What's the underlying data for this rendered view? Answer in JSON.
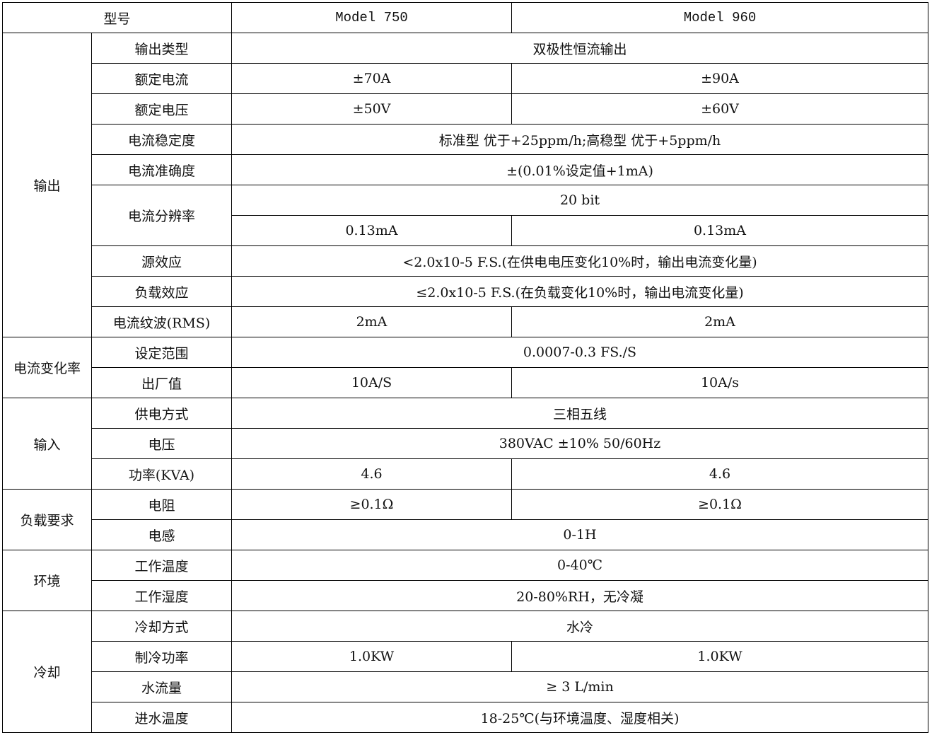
{
  "header": {
    "label": "型号",
    "models": [
      "Model 750",
      "Model 960"
    ]
  },
  "groups": [
    {
      "name": "输出",
      "rows": [
        {
          "label": "输出类型",
          "values": [
            "双极性恒流输出"
          ]
        },
        {
          "label": "额定电流",
          "values": [
            "±70A",
            "±90A"
          ]
        },
        {
          "label": "额定电压",
          "values": [
            "±50V",
            "±60V"
          ]
        },
        {
          "label": "电流稳定度",
          "values": [
            "标准型  优于+25ppm/h;高稳型  优于+5ppm/h"
          ]
        },
        {
          "label": "电流准确度",
          "values": [
            "±(0.01%设定值+1mA)"
          ]
        },
        {
          "label": "电流分辨率",
          "values": [
            "20 bit"
          ],
          "sub_values": [
            "0.13mA",
            "0.13mA"
          ]
        },
        {
          "label": "源效应",
          "values": [
            "<2.0x10-5 F.S.(在供电电压变化10%时，输出电流变化量)"
          ]
        },
        {
          "label": "负载效应",
          "values": [
            "≤2.0x10-5 F.S.(在负载变化10%时，输出电流变化量)"
          ]
        },
        {
          "label": "电流纹波(RMS)",
          "values": [
            "2mA",
            "2mA"
          ]
        }
      ]
    },
    {
      "name": "电流变化率",
      "rows": [
        {
          "label": "设定范围",
          "values": [
            "0.0007-0.3 FS./S"
          ]
        },
        {
          "label": "出厂值",
          "values": [
            "10A/S",
            "10A/s"
          ]
        }
      ]
    },
    {
      "name": "输入",
      "rows": [
        {
          "label": "供电方式",
          "values": [
            "三相五线"
          ]
        },
        {
          "label": "电压",
          "values": [
            "380VAC ±10% 50/60Hz"
          ]
        },
        {
          "label": "功率(KVA)",
          "values": [
            "4.6",
            "4.6"
          ]
        }
      ]
    },
    {
      "name": "负载要求",
      "rows": [
        {
          "label": "电阻",
          "values": [
            "≥0.1Ω",
            "≥0.1Ω"
          ]
        },
        {
          "label": "电感",
          "values": [
            "0-1H"
          ]
        }
      ]
    },
    {
      "name": "环境",
      "rows": [
        {
          "label": "工作温度",
          "values": [
            "0-40℃"
          ]
        },
        {
          "label": "工作湿度",
          "values": [
            "20-80%RH，无冷凝"
          ]
        }
      ]
    },
    {
      "name": "冷却",
      "rows": [
        {
          "label": "冷却方式",
          "values": [
            "水冷"
          ]
        },
        {
          "label": "制冷功率",
          "values": [
            "1.0KW",
            "1.0KW"
          ]
        },
        {
          "label": "水流量",
          "values": [
            "≥ 3 L/min"
          ]
        },
        {
          "label": "进水温度",
          "values": [
            "18-25℃(与环境温度、湿度相关)"
          ]
        }
      ]
    }
  ]
}
